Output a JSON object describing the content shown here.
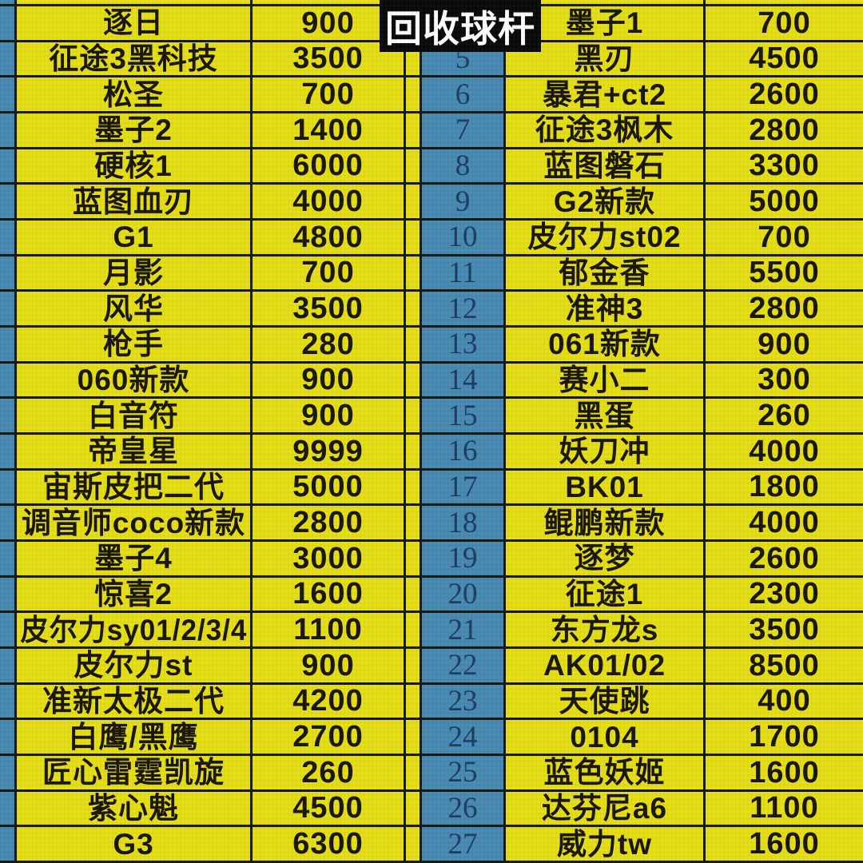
{
  "title": {
    "label": "回收球杆"
  },
  "colors": {
    "yellow": "#e5de14",
    "blue": "#4689b2",
    "border": "#15150f",
    "text": "#17130a",
    "number_text": "#1a3a60",
    "title_bg": "#070707",
    "title_text": "#ffffff"
  },
  "table": {
    "description": "cue stick buyback price list, two name/price column pairs with spreadsheet row numbers",
    "rows": [
      {
        "num": "",
        "left": {
          "name": "逐日",
          "price": "900"
        },
        "right": {
          "name": "墨子1",
          "price": "700"
        }
      },
      {
        "num": "5",
        "left": {
          "name": "征途3黑科技",
          "price": "3500"
        },
        "right": {
          "name": "黑刃",
          "price": "4500"
        }
      },
      {
        "num": "6",
        "left": {
          "name": "松圣",
          "price": "700"
        },
        "right": {
          "name": "暴君+ct2",
          "price": "2600"
        }
      },
      {
        "num": "7",
        "left": {
          "name": "墨子2",
          "price": "1400"
        },
        "right": {
          "name": "征途3枫木",
          "price": "2800"
        }
      },
      {
        "num": "8",
        "left": {
          "name": "硬核1",
          "price": "6000"
        },
        "right": {
          "name": "蓝图磐石",
          "price": "3300"
        }
      },
      {
        "num": "9",
        "left": {
          "name": "蓝图血刃",
          "price": "4000"
        },
        "right": {
          "name": "G2新款",
          "price": "5000"
        }
      },
      {
        "num": "10",
        "left": {
          "name": "G1",
          "price": "4800"
        },
        "right": {
          "name": "皮尔力st02",
          "price": "700"
        }
      },
      {
        "num": "11",
        "left": {
          "name": "月影",
          "price": "700"
        },
        "right": {
          "name": "郁金香",
          "price": "5500"
        }
      },
      {
        "num": "12",
        "left": {
          "name": "风华",
          "price": "3500"
        },
        "right": {
          "name": "准神3",
          "price": "2800"
        }
      },
      {
        "num": "13",
        "left": {
          "name": "枪手",
          "price": "280"
        },
        "right": {
          "name": "061新款",
          "price": "900"
        }
      },
      {
        "num": "14",
        "left": {
          "name": "060新款",
          "price": "900"
        },
        "right": {
          "name": "赛小二",
          "price": "300"
        }
      },
      {
        "num": "15",
        "left": {
          "name": "白音符",
          "price": "900"
        },
        "right": {
          "name": "黑蛋",
          "price": "260"
        }
      },
      {
        "num": "16",
        "left": {
          "name": "帝皇星",
          "price": "9999"
        },
        "right": {
          "name": "妖刀冲",
          "price": "4000"
        }
      },
      {
        "num": "17",
        "left": {
          "name": "宙斯皮把二代",
          "price": "5000"
        },
        "right": {
          "name": "BK01",
          "price": "1800"
        }
      },
      {
        "num": "18",
        "left": {
          "name": "调音师coco新款",
          "price": "2800"
        },
        "right": {
          "name": "鲲鹏新款",
          "price": "4000"
        }
      },
      {
        "num": "19",
        "left": {
          "name": "墨子4",
          "price": "3000"
        },
        "right": {
          "name": "逐梦",
          "price": "2600"
        }
      },
      {
        "num": "20",
        "left": {
          "name": "惊喜2",
          "price": "1600"
        },
        "right": {
          "name": "征途1",
          "price": "2300"
        }
      },
      {
        "num": "21",
        "left": {
          "name": "皮尔力sy01/2/3/4",
          "price": "1100"
        },
        "right": {
          "name": "东方龙s",
          "price": "3500"
        }
      },
      {
        "num": "22",
        "left": {
          "name": "皮尔力st",
          "price": "900"
        },
        "right": {
          "name": "AK01/02",
          "price": "8500"
        }
      },
      {
        "num": "23",
        "left": {
          "name": "准新太极二代",
          "price": "4200"
        },
        "right": {
          "name": "天使跳",
          "price": "400"
        }
      },
      {
        "num": "24",
        "left": {
          "name": "白鹰/黑鹰",
          "price": "2700"
        },
        "right": {
          "name": "0104",
          "price": "1700"
        }
      },
      {
        "num": "25",
        "left": {
          "name": "匠心雷霆凯旋",
          "price": "260"
        },
        "right": {
          "name": "蓝色妖姬",
          "price": "1600"
        }
      },
      {
        "num": "26",
        "left": {
          "name": "紫心魁",
          "price": "4500"
        },
        "right": {
          "name": "达芬尼a6",
          "price": "1100"
        }
      },
      {
        "num": "27",
        "left": {
          "name": "G3",
          "price": "6300"
        },
        "right": {
          "name": "威力tw",
          "price": "1600"
        }
      }
    ]
  }
}
